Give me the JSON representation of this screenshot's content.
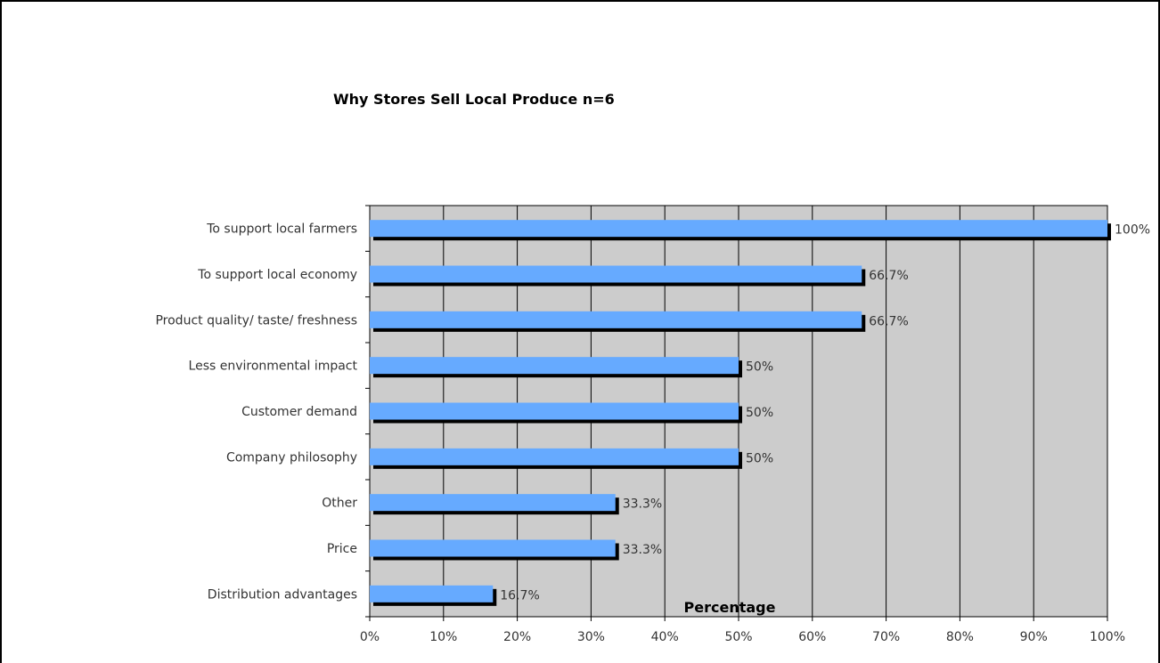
{
  "chart_data": {
    "type": "bar",
    "orientation": "horizontal",
    "title": "Why Stores Sell Local Produce n=6",
    "xlabel": "Percentage",
    "ylabel": "",
    "categories": [
      "To support local farmers",
      "To support local economy",
      "Product quality/ taste/ freshness",
      "Less environmental impact",
      "Customer demand",
      "Company philosophy",
      "Other",
      "Price",
      "Distribution advantages"
    ],
    "values": [
      100,
      66.7,
      66.7,
      50,
      50,
      50,
      33.3,
      33.3,
      16.7
    ],
    "data_labels": [
      "100%",
      "66.7%",
      "66.7%",
      "50%",
      "50%",
      "50%",
      "33.3%",
      "33.3%",
      "16.7%"
    ],
    "xlim": [
      0,
      100
    ],
    "xticks": [
      0,
      10,
      20,
      30,
      40,
      50,
      60,
      70,
      80,
      90,
      100
    ],
    "xtick_labels": [
      "0%",
      "10%",
      "20%",
      "30%",
      "40%",
      "50%",
      "60%",
      "70%",
      "80%",
      "90%",
      "100%"
    ],
    "grid": true,
    "legend": "none",
    "colors": {
      "bar": "#66aaff",
      "bar_shadow": "#000000",
      "plot_background": "#cccccc",
      "gridline": "#000000"
    }
  }
}
